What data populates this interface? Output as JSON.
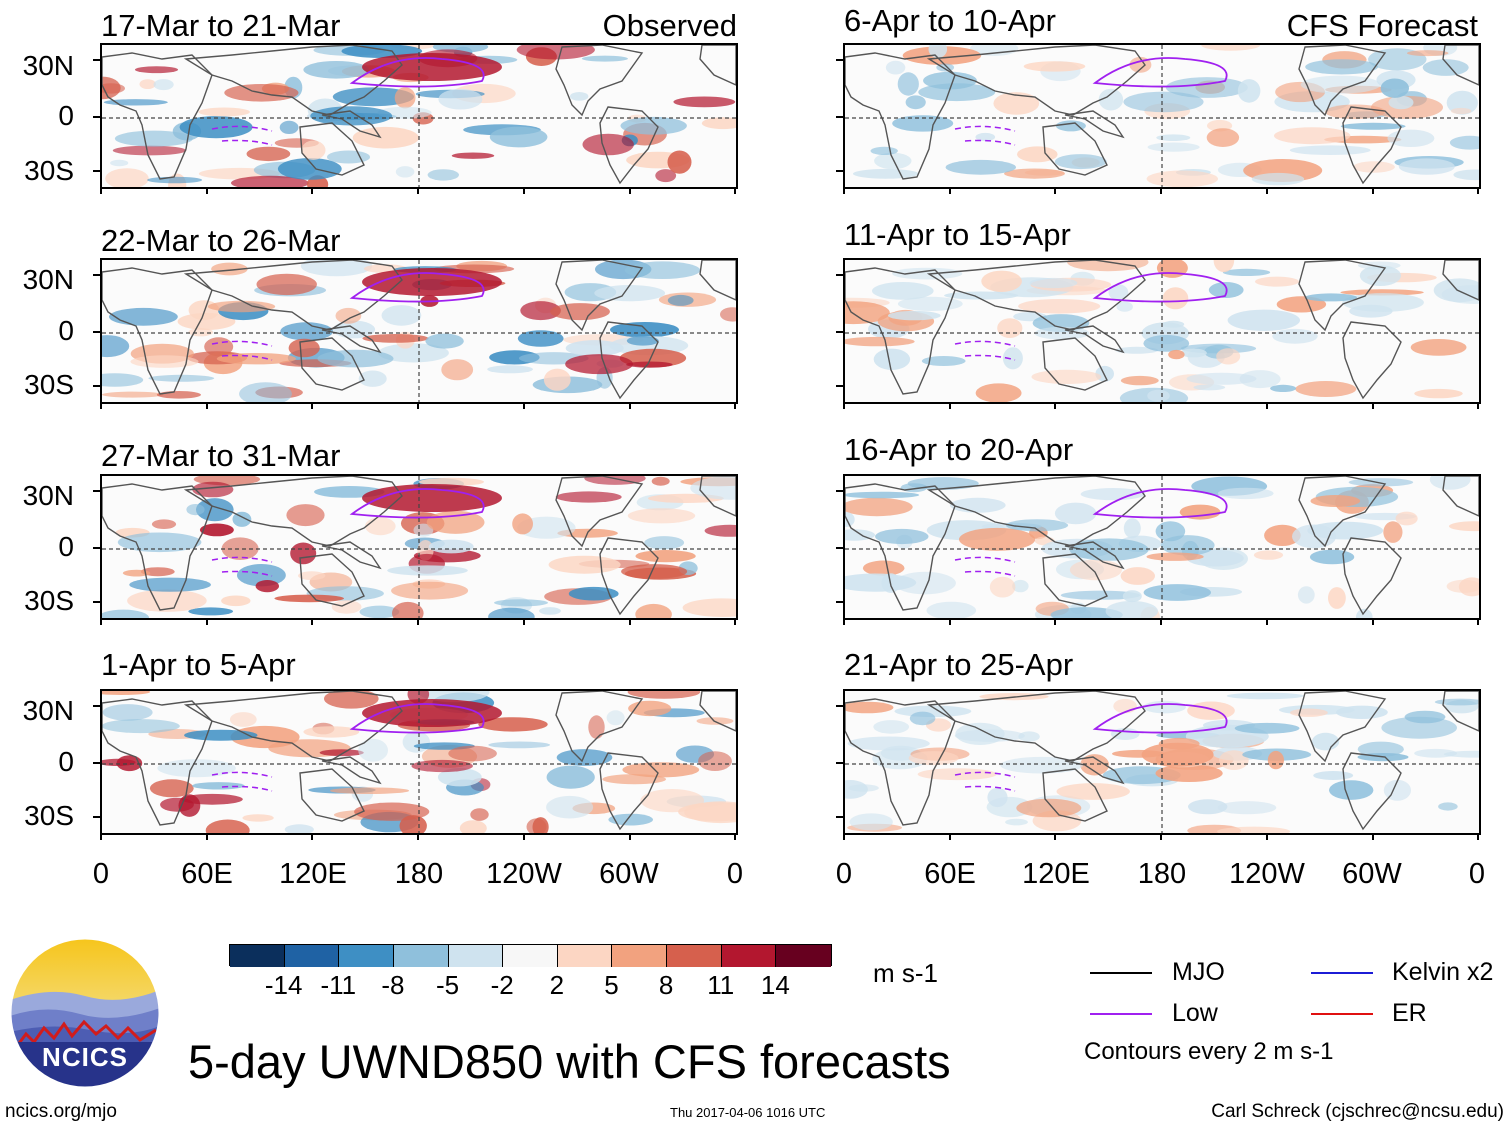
{
  "panels": {
    "left": [
      {
        "title": "17-Mar to 21-Mar",
        "tag": "Observed"
      },
      {
        "title": "22-Mar to 26-Mar",
        "tag": ""
      },
      {
        "title": "27-Mar to 31-Mar",
        "tag": ""
      },
      {
        "title": "1-Apr to 5-Apr",
        "tag": ""
      }
    ],
    "right": [
      {
        "title": "6-Apr to 10-Apr",
        "tag": "CFS Forecast"
      },
      {
        "title": "11-Apr to 15-Apr",
        "tag": ""
      },
      {
        "title": "16-Apr to 20-Apr",
        "tag": ""
      },
      {
        "title": "21-Apr to 25-Apr",
        "tag": ""
      }
    ]
  },
  "lat_labels": [
    "30N",
    "0",
    "30S"
  ],
  "lon_labels": [
    "0",
    "60E",
    "120E",
    "180",
    "120W",
    "60W",
    "0"
  ],
  "colorbar": {
    "colors": [
      "#0b2f5c",
      "#1f62a4",
      "#3e8fc4",
      "#8fc0dc",
      "#cfe3ef",
      "#f7f7f7",
      "#fcd6c3",
      "#f2a27f",
      "#d6604d",
      "#b3172f",
      "#67001f"
    ],
    "labels": [
      "-14",
      "-11",
      "-8",
      "-5",
      "-2",
      "2",
      "5",
      "8",
      "11",
      "14"
    ],
    "units": "m s-1"
  },
  "legend": {
    "items": [
      {
        "label": "MJO",
        "color": "#000000"
      },
      {
        "label": "Kelvin x2",
        "color": "#1c1cd6"
      },
      {
        "label": "Low",
        "color": "#a020f0"
      },
      {
        "label": "ER",
        "color": "#e01010"
      }
    ],
    "contours_note": "Contours every 2 m s-1"
  },
  "logo": {
    "text": "NCICS"
  },
  "main_title": "5-day UWND850 with CFS forecasts",
  "footer": {
    "left": "ncics.org/mjo",
    "center": "Thu 2017-04-06 1016 UTC",
    "right": "Carl Schreck (cjschrec@ncsu.edu)"
  }
}
